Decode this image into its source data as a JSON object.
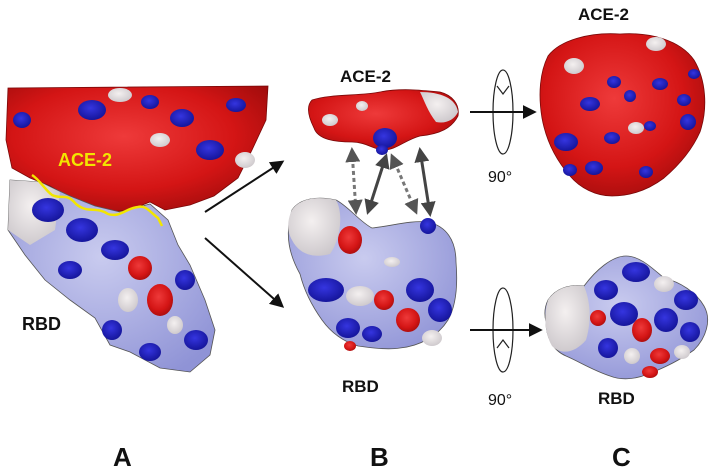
{
  "figure": {
    "panels": [
      "A",
      "B",
      "C"
    ],
    "labels": {
      "a_ace2": "ACE-2",
      "a_rbd": "RBD",
      "b_ace2": "ACE-2",
      "b_rbd": "RBD",
      "c_ace2": "ACE-2",
      "c_rbd": "RBD"
    },
    "rotation": {
      "top": "90°",
      "bottom": "90°"
    },
    "colors": {
      "negative": "#d41515",
      "positive": "#1a1ac8",
      "neutral": "#e6e0e0",
      "interface_outline": "#f2e600"
    }
  }
}
